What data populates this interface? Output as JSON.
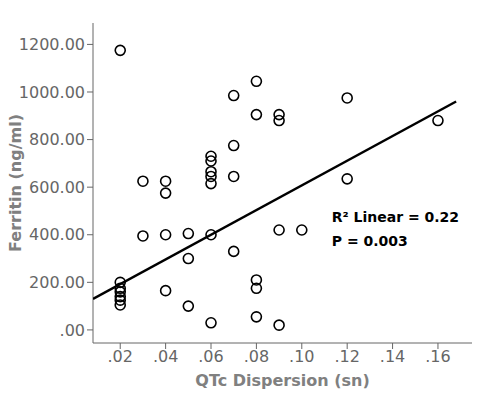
{
  "chart_data": {
    "type": "scatter",
    "x_label": "QTc Dispersion (sn)",
    "y_label": "Ferritin (ng/ml)",
    "series": [
      {
        "type": "scatter",
        "color": "#000000",
        "x": [
          0.02,
          0.02,
          0.02,
          0.02,
          0.02,
          0.02,
          0.02,
          0.03,
          0.03,
          0.04,
          0.04,
          0.04,
          0.04,
          0.05,
          0.05,
          0.05,
          0.06,
          0.06,
          0.06,
          0.06,
          0.06,
          0.06,
          0.06,
          0.07,
          0.07,
          0.07,
          0.07,
          0.08,
          0.08,
          0.08,
          0.08,
          0.08,
          0.09,
          0.09,
          0.09,
          0.09,
          0.1,
          0.12,
          0.12,
          0.16
        ],
        "values": [
          1175,
          200,
          175,
          160,
          140,
          125,
          105,
          625,
          395,
          625,
          575,
          400,
          165,
          405,
          300,
          100,
          730,
          710,
          665,
          645,
          615,
          400,
          30,
          985,
          775,
          645,
          330,
          1045,
          905,
          210,
          175,
          55,
          905,
          880,
          420,
          20,
          420,
          975,
          635,
          880
        ]
      },
      {
        "type": "line",
        "color": "#000000",
        "x": [
          0.008,
          0.168
        ],
        "values": [
          130,
          960
        ]
      }
    ],
    "annotations": [
      "R² Linear = 0.22",
      "P = 0.003"
    ],
    "xlim": [
      0.008,
      0.175
    ],
    "ylim": [
      -55,
      1290
    ],
    "xticks": [
      {
        "value": 0.02,
        "label": ".02"
      },
      {
        "value": 0.04,
        "label": ".04"
      },
      {
        "value": 0.06,
        "label": ".06"
      },
      {
        "value": 0.08,
        "label": ".08"
      },
      {
        "value": 0.1,
        "label": ".10"
      },
      {
        "value": 0.12,
        "label": ".12"
      },
      {
        "value": 0.14,
        "label": ".14"
      },
      {
        "value": 0.16,
        "label": ".16"
      }
    ],
    "yticks": [
      {
        "value": 0,
        "label": ".00"
      },
      {
        "value": 200,
        "label": "200.00"
      },
      {
        "value": 400,
        "label": "400.00"
      },
      {
        "value": 600,
        "label": "600.00"
      },
      {
        "value": 800,
        "label": "800.00"
      },
      {
        "value": 1000,
        "label": "1000.00"
      },
      {
        "value": 1200,
        "label": "1200.00"
      }
    ],
    "grid": false
  }
}
